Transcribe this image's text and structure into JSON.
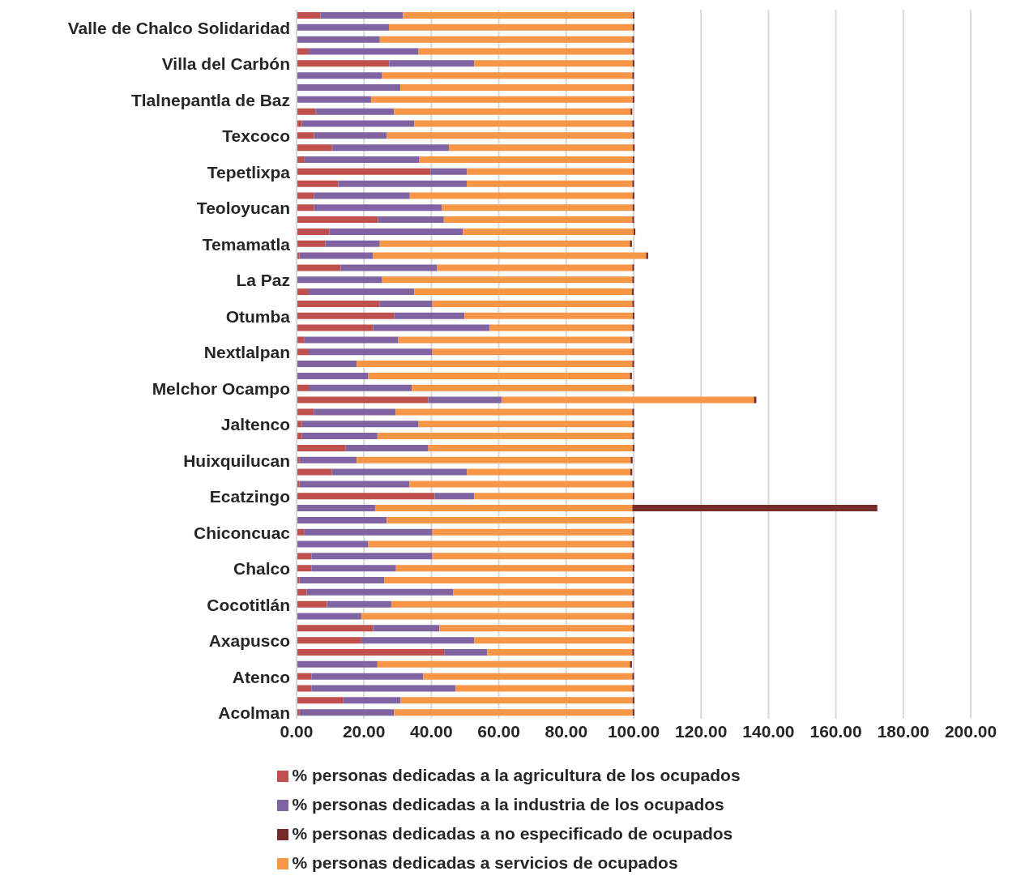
{
  "chart_data": {
    "type": "bar",
    "orientation": "horizontal",
    "stacked": true,
    "categories": [
      null,
      "Valle de Chalco Solidaridad",
      null,
      null,
      "Villa del Carbón",
      null,
      null,
      "Tlalnepantla de Baz",
      null,
      null,
      "Texcoco",
      null,
      null,
      "Tepetlixpa",
      null,
      null,
      "Teoloyucan",
      null,
      null,
      "Temamatla",
      null,
      null,
      "La Paz",
      null,
      null,
      "Otumba",
      null,
      null,
      "Nextlalpan",
      null,
      null,
      "Melchor Ocampo",
      null,
      null,
      "Jaltenco",
      null,
      null,
      "Huixquilucan",
      null,
      null,
      "Ecatzingo",
      null,
      null,
      "Chiconcuac",
      null,
      null,
      "Chalco",
      null,
      null,
      "Cocotitlán",
      null,
      null,
      "Axapusco",
      null,
      null,
      "Atenco",
      null,
      null,
      "Acolman"
    ],
    "series": [
      {
        "name": "% personas dedicadas a la agricultura de los ocupados",
        "color": "#c0504d",
        "values": [
          7.1,
          0.2,
          0.2,
          3.6,
          27.5,
          0.2,
          0.2,
          0.2,
          5.7,
          1.6,
          5.1,
          10.5,
          2.2,
          39.7,
          12.4,
          5.1,
          5.1,
          24.1,
          9.7,
          8.5,
          0.9,
          13.1,
          0.2,
          3.6,
          24.7,
          28.9,
          22.7,
          2.2,
          3.6,
          0.2,
          0.2,
          3.6,
          39.1,
          5.1,
          1.6,
          1.6,
          14.6,
          0.9,
          10.5,
          0.9,
          41.0,
          0.2,
          0.2,
          2.2,
          0.2,
          4.4,
          4.4,
          0.9,
          3.0,
          9.0,
          0.2,
          22.7,
          19.2,
          43.8,
          0.2,
          4.4,
          4.4,
          13.9,
          0.9
        ]
      },
      {
        "name": "% personas dedicadas a la industria de los ocupados",
        "color": "#8064a2",
        "values": [
          24.5,
          27.2,
          24.5,
          32.6,
          25.2,
          25.2,
          30.6,
          21.9,
          23.2,
          33.3,
          21.7,
          34.7,
          34.1,
          10.9,
          38.1,
          28.5,
          38.0,
          19.6,
          39.6,
          16.2,
          21.8,
          28.6,
          25.2,
          31.3,
          15.6,
          20.9,
          34.6,
          28.0,
          36.7,
          17.7,
          21.1,
          30.6,
          21.7,
          24.3,
          34.6,
          22.4,
          24.5,
          17.0,
          40.1,
          32.6,
          11.7,
          23.1,
          26.6,
          38.1,
          21.1,
          35.9,
          25.1,
          25.1,
          43.4,
          19.1,
          19.0,
          19.7,
          33.5,
          12.8,
          23.8,
          33.2,
          42.8,
          17.0,
          28.0
        ]
      },
      {
        "name": "% personas dedicadas a servicios de ocupados",
        "color": "#f79646",
        "values": [
          68.1,
          72.3,
          74.9,
          63.4,
          47.0,
          74.2,
          68.8,
          77.6,
          70.2,
          64.7,
          72.9,
          54.6,
          63.4,
          49.1,
          49.1,
          66.1,
          56.6,
          55.9,
          50.7,
          74.2,
          81.0,
          57.9,
          74.2,
          64.6,
          59.3,
          49.9,
          42.3,
          68.8,
          59.3,
          81.7,
          77.6,
          65.4,
          74.9,
          70.2,
          63.4,
          75.6,
          60.6,
          81.2,
          48.4,
          66.1,
          47.0,
          76.3,
          72.9,
          59.3,
          78.3,
          59.3,
          70.2,
          73.6,
          53.2,
          71.5,
          80.4,
          57.3,
          47.0,
          43.0,
          74.9,
          62.0,
          52.4,
          68.8,
          70.8
        ]
      },
      {
        "name": "% personas dedicadas a no especificado de ocupados",
        "color": "#772c2a",
        "values": [
          0.5,
          0.5,
          0.5,
          0.5,
          0.5,
          0.5,
          0.5,
          0.5,
          0.5,
          0.5,
          0.5,
          0.5,
          0.5,
          0.5,
          0.5,
          0.5,
          0.5,
          0.5,
          0.5,
          0.6,
          0.6,
          0.5,
          0.5,
          0.5,
          0.5,
          0.5,
          0.5,
          0.6,
          0.5,
          0.5,
          0.6,
          0.5,
          0.7,
          0.5,
          0.5,
          0.5,
          0.5,
          0.6,
          0.6,
          0.5,
          0.5,
          72.7,
          0.5,
          0.5,
          0.5,
          0.5,
          0.5,
          0.5,
          0.5,
          0.5,
          0.5,
          0.5,
          0.5,
          0.5,
          0.6,
          0.5,
          0.5,
          0.5,
          0.5
        ]
      }
    ],
    "xlim": [
      0,
      200
    ],
    "xticks": [
      {
        "value": 0,
        "label": "0.00"
      },
      {
        "value": 20,
        "label": "20.00"
      },
      {
        "value": 40,
        "label": "40.00"
      },
      {
        "value": 60,
        "label": "60.00"
      },
      {
        "value": 80,
        "label": "80.00"
      },
      {
        "value": 100,
        "label": "100.00"
      },
      {
        "value": 120,
        "label": "120.00"
      },
      {
        "value": 140,
        "label": "140.00"
      },
      {
        "value": 160,
        "label": "160.00"
      },
      {
        "value": 180,
        "label": "180.00"
      },
      {
        "value": 200,
        "label": "200.00"
      }
    ],
    "grid": "x",
    "legend": "bottom"
  }
}
